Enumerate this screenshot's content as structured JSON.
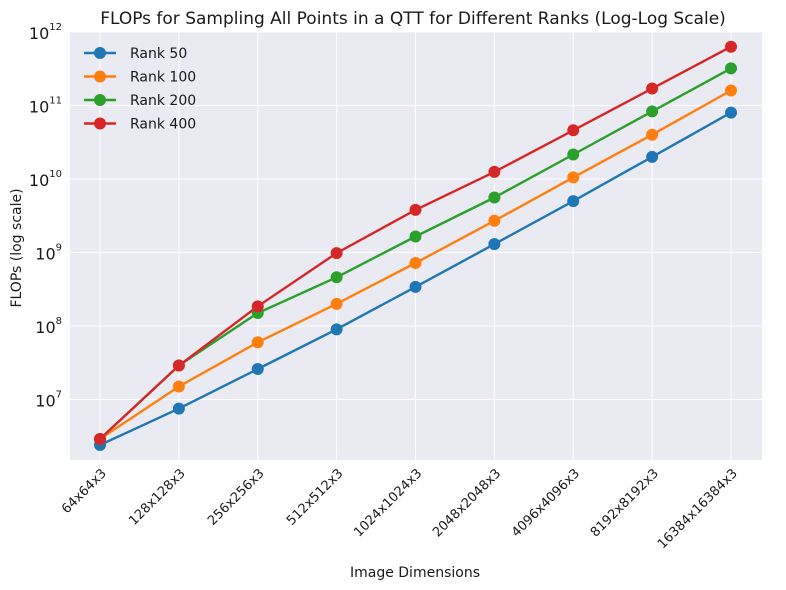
{
  "chart_data": {
    "type": "line",
    "title": "FLOPs for Sampling All Points in a QTT for Different Ranks (Log-Log Scale)",
    "xlabel": "Image Dimensions",
    "ylabel": "FLOPs (log scale)",
    "yscale": "log",
    "ylim": [
      1500000.0,
      1000000000000.0
    ],
    "categories": [
      "64x64x3",
      "128x128x3",
      "256x256x3",
      "512x512x3",
      "1024x1024x3",
      "2048x2048x3",
      "4096x4096x3",
      "8192x8192x3",
      "16384x16384x3"
    ],
    "y_ticks": [
      {
        "value": 10000000.0,
        "base": "10",
        "exp": "7"
      },
      {
        "value": 100000000.0,
        "base": "10",
        "exp": "8"
      },
      {
        "value": 1000000000.0,
        "base": "10",
        "exp": "9"
      },
      {
        "value": 10000000000.0,
        "base": "10",
        "exp": "10"
      },
      {
        "value": 100000000000.0,
        "base": "10",
        "exp": "11"
      },
      {
        "value": 1000000000000.0,
        "base": "10",
        "exp": "12"
      }
    ],
    "grid": true,
    "legend_position": "top-left",
    "series": [
      {
        "name": "Rank 50",
        "color": "#1f77b4",
        "values": [
          2400000.0,
          7500000.0,
          26000000.0,
          90000000.0,
          340000000.0,
          1300000000.0,
          5000000000.0,
          20000000000.0,
          80000000000.0
        ]
      },
      {
        "name": "Rank 100",
        "color": "#ff7f0e",
        "values": [
          2900000.0,
          15000000.0,
          60000000.0,
          200000000.0,
          720000000.0,
          2700000000.0,
          10500000000.0,
          40000000000.0,
          160000000000.0
        ]
      },
      {
        "name": "Rank 200",
        "color": "#2ca02c",
        "values": [
          2900000.0,
          29000000.0,
          150000000.0,
          460000000.0,
          1650000000.0,
          5600000000.0,
          21500000000.0,
          83000000000.0,
          320000000000.0
        ]
      },
      {
        "name": "Rank 400",
        "color": "#d62728",
        "values": [
          2900000.0,
          29000000.0,
          185000000.0,
          980000000.0,
          3800000000.0,
          12500000000.0,
          46000000000.0,
          170000000000.0,
          630000000000.0
        ]
      }
    ]
  }
}
